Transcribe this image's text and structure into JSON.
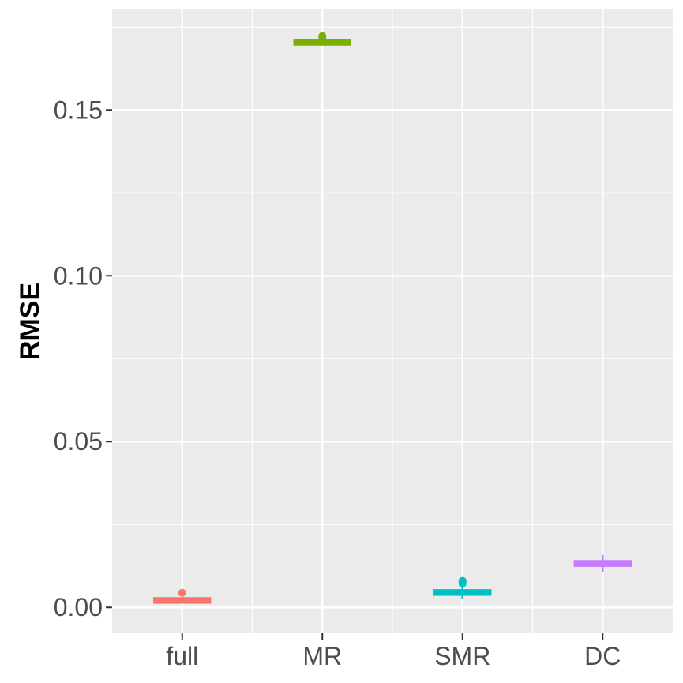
{
  "chart_data": {
    "type": "boxplot",
    "title": "",
    "xlabel": "",
    "ylabel": "RMSE",
    "ylim": [
      -0.0078,
      0.1803
    ],
    "y_ticks": [
      0.0,
      0.05,
      0.1,
      0.15
    ],
    "y_tick_labels": [
      "0.00",
      "0.05",
      "0.10",
      "0.15"
    ],
    "grid": true,
    "legend": "none",
    "categories": [
      "full",
      "MR",
      "SMR",
      "DC"
    ],
    "series": [
      {
        "category": "full",
        "color": "#F8766D",
        "whisker_low": 0.0013,
        "q1": 0.0018,
        "median": 0.0021,
        "q3": 0.0024,
        "whisker_high": 0.0031,
        "outliers": [
          0.0044
        ]
      },
      {
        "category": "MR",
        "color": "#7CAE00",
        "whisker_low": 0.1697,
        "q1": 0.1701,
        "median": 0.1704,
        "q3": 0.1707,
        "whisker_high": 0.1712,
        "outliers": [
          0.1723,
          0.172
        ]
      },
      {
        "category": "SMR",
        "color": "#00BFC4",
        "whisker_low": 0.0025,
        "q1": 0.004,
        "median": 0.0045,
        "q3": 0.005,
        "whisker_high": 0.0062,
        "outliers": [
          0.0072,
          0.0076,
          0.008
        ]
      },
      {
        "category": "DC",
        "color": "#C77CFF",
        "whisker_low": 0.0107,
        "q1": 0.0125,
        "median": 0.0133,
        "q3": 0.014,
        "whisker_high": 0.0158,
        "outliers": []
      }
    ]
  }
}
